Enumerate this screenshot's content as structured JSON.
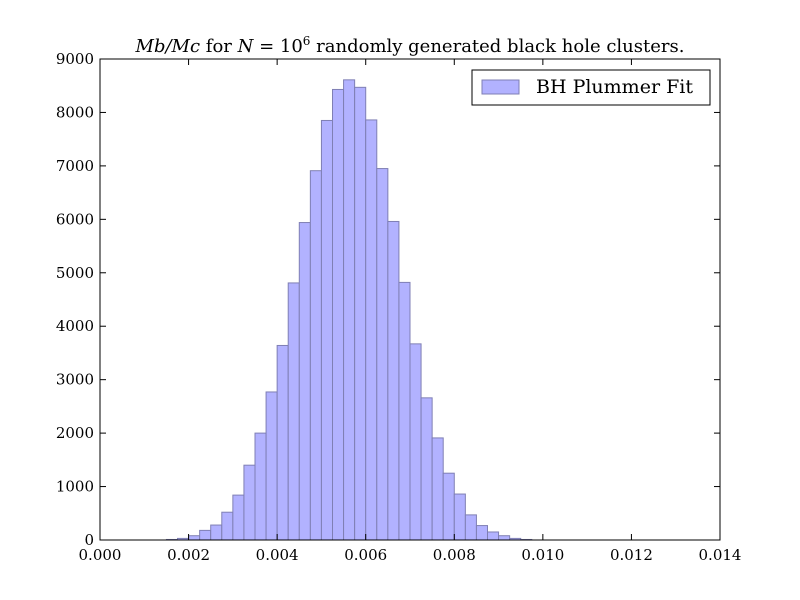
{
  "chart_data": {
    "type": "bar",
    "title_parts": [
      {
        "text": "Mb/Mc",
        "italic": true
      },
      {
        "text": " for ",
        "italic": false
      },
      {
        "text": "N",
        "italic": true
      },
      {
        "text": " = 10",
        "italic": false
      },
      {
        "text": "6",
        "italic": false,
        "sup": true
      },
      {
        "text": " randomly generated black hole clusters.",
        "italic": false
      }
    ],
    "xlim": [
      0.0,
      0.014
    ],
    "ylim": [
      0,
      9000
    ],
    "xticks": [
      "0.000",
      "0.002",
      "0.004",
      "0.006",
      "0.008",
      "0.010",
      "0.012",
      "0.014"
    ],
    "yticks": [
      "0",
      "1000",
      "2000",
      "3000",
      "4000",
      "5000",
      "6000",
      "7000",
      "8000",
      "9000"
    ],
    "bin_width": 0.00025,
    "bin_starts": [
      0.0015,
      0.00175,
      0.002,
      0.00225,
      0.0025,
      0.00275,
      0.003,
      0.00325,
      0.0035,
      0.00375,
      0.004,
      0.00425,
      0.0045,
      0.00475,
      0.005,
      0.00525,
      0.0055,
      0.00575,
      0.006,
      0.00625,
      0.0065,
      0.00675,
      0.007,
      0.00725,
      0.0075,
      0.00775,
      0.008,
      0.00825,
      0.0085,
      0.00875,
      0.009,
      0.00925,
      0.0095
    ],
    "series": [
      {
        "name": "BH Plummer Fit",
        "color": "#b2b2ff",
        "edge_color": "#7f7fb4",
        "values": [
          10,
          30,
          80,
          180,
          280,
          520,
          840,
          1400,
          2000,
          2770,
          3640,
          4810,
          5940,
          6910,
          7850,
          8430,
          8610,
          8470,
          7860,
          6950,
          5960,
          4820,
          3670,
          2660,
          1910,
          1250,
          860,
          470,
          270,
          150,
          80,
          30,
          10
        ]
      }
    ],
    "legend": {
      "location": "upper right",
      "label": "BH Plummer Fit"
    }
  }
}
